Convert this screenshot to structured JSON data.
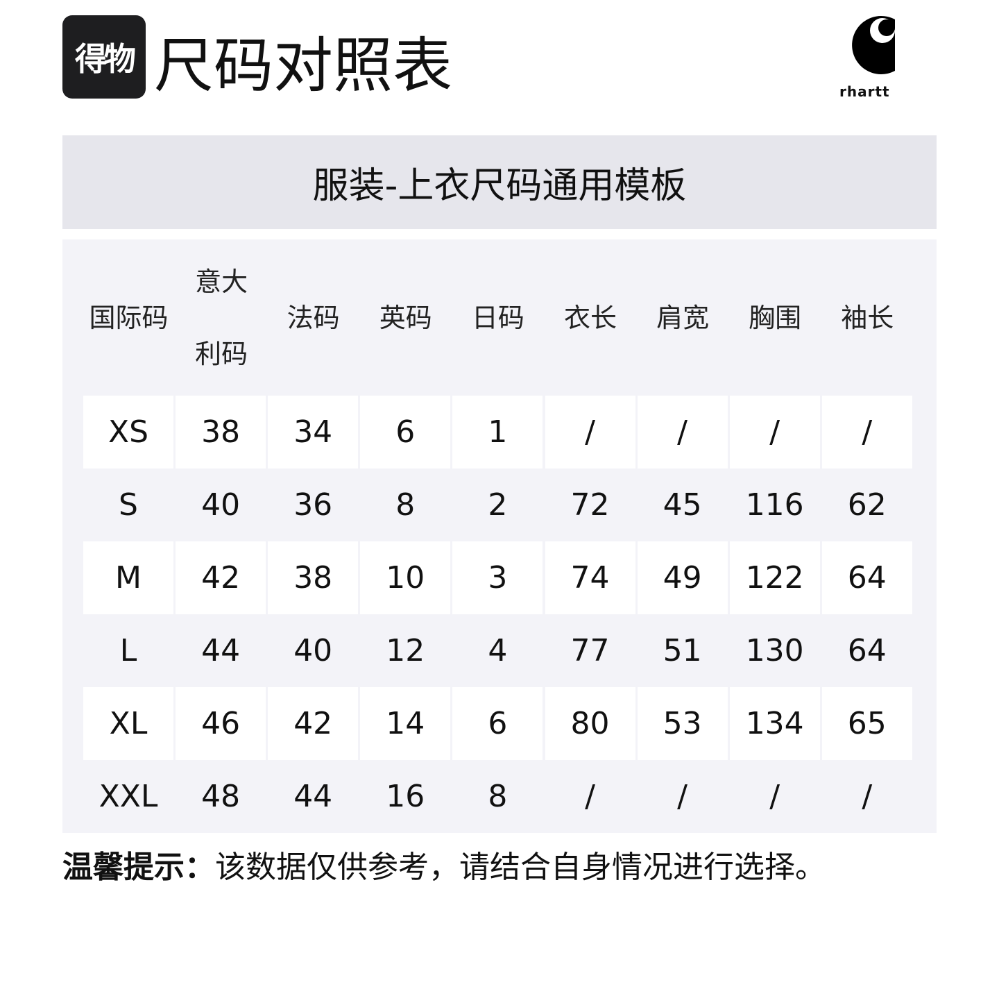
{
  "header": {
    "brand": "得物",
    "title": "尺码对照表",
    "logo_text": "rhartt"
  },
  "subtitle": "服装-上衣尺码通用模板",
  "table": {
    "columns": [
      "国际码",
      "意大利码",
      "法码",
      "英码",
      "日码",
      "衣长",
      "肩宽",
      "胸围",
      "袖长"
    ],
    "rows": [
      [
        "XS",
        "38",
        "34",
        "6",
        "1",
        "/",
        "/",
        "/",
        "/"
      ],
      [
        "S",
        "40",
        "36",
        "8",
        "2",
        "72",
        "45",
        "116",
        "62"
      ],
      [
        "M",
        "42",
        "38",
        "10",
        "3",
        "74",
        "49",
        "122",
        "64"
      ],
      [
        "L",
        "44",
        "40",
        "12",
        "4",
        "77",
        "51",
        "130",
        "64"
      ],
      [
        "XL",
        "46",
        "42",
        "14",
        "6",
        "80",
        "53",
        "134",
        "65"
      ],
      [
        "XXL",
        "48",
        "44",
        "16",
        "8",
        "/",
        "/",
        "/",
        "/"
      ]
    ]
  },
  "tip": {
    "label": "温馨提示：",
    "text": "该数据仅供参考，请结合自身情况进行选择。"
  }
}
